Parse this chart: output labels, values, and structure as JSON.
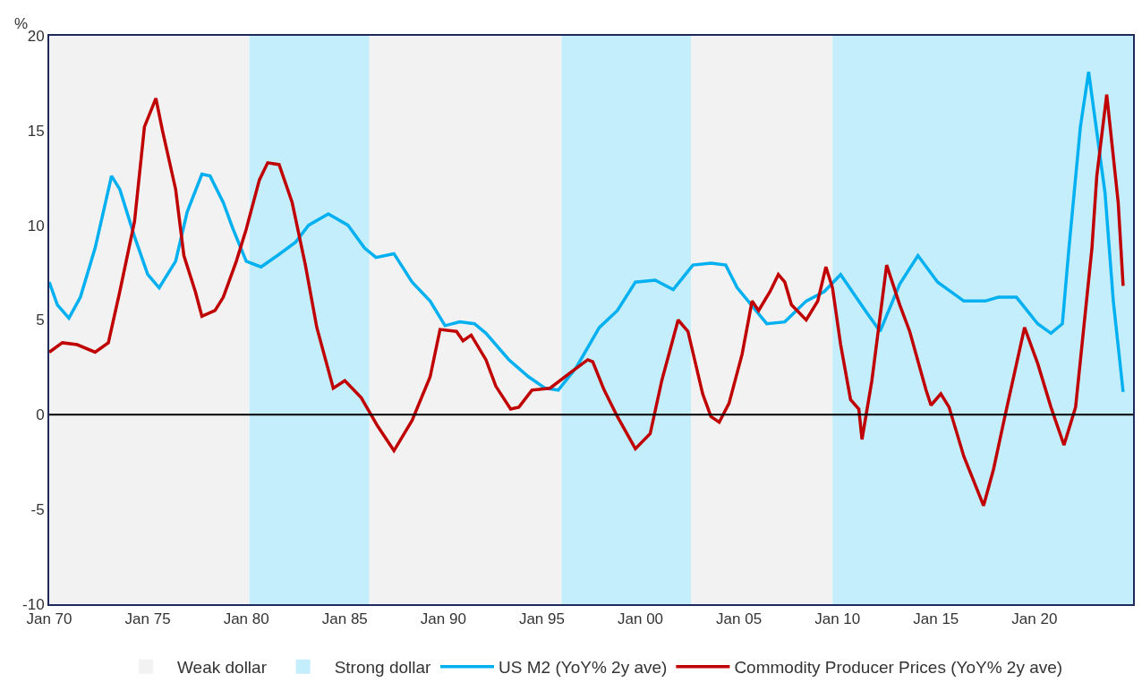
{
  "chart_data": {
    "type": "line",
    "ylabel": "%",
    "xlim": [
      "1970-01",
      "2025-01"
    ],
    "xticks": [
      {
        "value": "1970-01",
        "label": "Jan 70"
      },
      {
        "value": "1975-01",
        "label": "Jan 75"
      },
      {
        "value": "1980-01",
        "label": "Jan 80"
      },
      {
        "value": "1985-01",
        "label": "Jan 85"
      },
      {
        "value": "1990-01",
        "label": "Jan 90"
      },
      {
        "value": "1995-01",
        "label": "Jan 95"
      },
      {
        "value": "2000-01",
        "label": "Jan 00"
      },
      {
        "value": "2005-01",
        "label": "Jan 05"
      },
      {
        "value": "2010-01",
        "label": "Jan 10"
      },
      {
        "value": "2015-01",
        "label": "Jan 15"
      },
      {
        "value": "2020-01",
        "label": "Jan 20"
      }
    ],
    "ylim": [
      -10,
      20
    ],
    "yticks": [
      -10,
      -5,
      0,
      5,
      10,
      15,
      20
    ],
    "grid": false,
    "legend": "bottom",
    "marker": "none",
    "line_style": "solid",
    "ref_lines": [
      {
        "axis": "y",
        "value": 0,
        "color": "#000000"
      }
    ],
    "bands": [
      {
        "axis": "x",
        "from": "1970-01",
        "to": "1980-03",
        "label": "Weak dollar",
        "color": "#f2f2f2"
      },
      {
        "axis": "x",
        "from": "1980-03",
        "to": "1986-04",
        "label": "Strong dollar",
        "color": "#c5eefc"
      },
      {
        "axis": "x",
        "from": "1986-04",
        "to": "1996-01",
        "color": "#f2f2f2"
      },
      {
        "axis": "x",
        "from": "1996-01",
        "to": "2002-08",
        "color": "#c5eefc"
      },
      {
        "axis": "x",
        "from": "2002-08",
        "to": "2009-10",
        "color": "#f2f2f2"
      },
      {
        "axis": "x",
        "from": "2009-10",
        "to": "2025-01",
        "color": "#c5eefc"
      }
    ],
    "series": [
      {
        "name": "US M2 (YoY% 2y ave)",
        "color": "#00b0f0",
        "x": [
          "1970-01",
          "1970-06",
          "1971-01",
          "1971-08",
          "1972-05",
          "1973-03",
          "1973-08",
          "1974-05",
          "1975-01",
          "1975-08",
          "1976-06",
          "1977-01",
          "1977-10",
          "1978-03",
          "1978-11",
          "1979-05",
          "1980-01",
          "1980-10",
          "1981-08",
          "1982-07",
          "1983-03",
          "1984-03",
          "1985-03",
          "1986-01",
          "1986-08",
          "1987-07",
          "1988-06",
          "1989-05",
          "1990-02",
          "1990-11",
          "1991-08",
          "1992-03",
          "1993-05",
          "1994-05",
          "1995-03",
          "1995-11",
          "1996-10",
          "1997-12",
          "1998-11",
          "1999-10",
          "2000-10",
          "2001-09",
          "2002-09",
          "2003-08",
          "2004-05",
          "2004-12",
          "2006-06",
          "2007-05",
          "2008-06",
          "2009-05",
          "2010-03",
          "2011-06",
          "2012-03",
          "2013-03",
          "2014-02",
          "2015-02",
          "2016-06",
          "2017-07",
          "2018-03",
          "2019-02",
          "2020-03",
          "2020-11",
          "2021-06",
          "2021-10",
          "2022-05",
          "2022-10",
          "2023-08",
          "2024-01",
          "2024-07"
        ],
        "values": [
          7.0,
          5.8,
          5.1,
          6.2,
          8.8,
          12.6,
          11.9,
          9.4,
          7.4,
          6.7,
          8.1,
          10.7,
          12.7,
          12.6,
          11.2,
          9.8,
          8.1,
          7.8,
          8.4,
          9.1,
          10.0,
          10.6,
          10.0,
          8.8,
          8.3,
          8.5,
          7.0,
          6.0,
          4.7,
          4.9,
          4.8,
          4.3,
          2.9,
          2.0,
          1.4,
          1.3,
          2.5,
          4.6,
          5.5,
          7.0,
          7.1,
          6.6,
          7.9,
          8.0,
          7.9,
          6.7,
          4.8,
          4.9,
          6.0,
          6.5,
          7.4,
          5.5,
          4.4,
          6.9,
          8.4,
          7.0,
          6.0,
          6.0,
          6.2,
          6.2,
          4.8,
          4.3,
          4.8,
          8.8,
          15.2,
          18.1,
          11.7,
          6.0,
          1.2
        ]
      },
      {
        "name": "Commodity Producer Prices (YoY% 2y ave)",
        "color": "#c00000",
        "x": [
          "1970-01",
          "1970-09",
          "1971-06",
          "1972-05",
          "1973-01",
          "1973-08",
          "1974-05",
          "1974-11",
          "1975-06",
          "1975-10",
          "1976-06",
          "1976-11",
          "1977-06",
          "1977-10",
          "1978-06",
          "1978-11",
          "1979-07",
          "1980-01",
          "1980-09",
          "1981-02",
          "1981-09",
          "1982-05",
          "1983-01",
          "1983-08",
          "1984-06",
          "1985-01",
          "1985-11",
          "1986-09",
          "1987-07",
          "1988-06",
          "1989-05",
          "1989-11",
          "1990-09",
          "1991-01",
          "1991-06",
          "1992-03",
          "1992-09",
          "1993-06",
          "1993-11",
          "1994-07",
          "1995-06",
          "1996-06",
          "1997-05",
          "1997-08",
          "1998-03",
          "1998-11",
          "1999-10",
          "2000-07",
          "2001-02",
          "2001-12",
          "2002-06",
          "2003-03",
          "2003-08",
          "2004-01",
          "2004-07",
          "2005-03",
          "2005-09",
          "2006-01",
          "2006-08",
          "2007-01",
          "2007-05",
          "2007-09",
          "2008-06",
          "2009-01",
          "2009-06",
          "2009-10",
          "2010-03",
          "2010-09",
          "2011-02",
          "2011-04",
          "2011-10",
          "2012-07",
          "2013-03",
          "2013-09",
          "2014-07",
          "2014-10",
          "2015-04",
          "2015-09",
          "2016-06",
          "2017-06",
          "2017-12",
          "2018-07",
          "2019-07",
          "2020-03",
          "2020-11",
          "2021-07",
          "2022-02",
          "2022-12",
          "2023-03",
          "2023-09",
          "2024-04",
          "2024-07"
        ],
        "values": [
          3.3,
          3.8,
          3.7,
          3.3,
          3.8,
          6.5,
          10.2,
          15.2,
          16.7,
          15.0,
          11.9,
          8.4,
          6.5,
          5.2,
          5.5,
          6.2,
          8.1,
          9.8,
          12.4,
          13.3,
          13.2,
          11.2,
          7.9,
          4.6,
          1.4,
          1.8,
          0.9,
          -0.6,
          -1.9,
          -0.3,
          2.0,
          4.5,
          4.4,
          3.9,
          4.2,
          2.9,
          1.5,
          0.3,
          0.4,
          1.3,
          1.4,
          2.2,
          2.9,
          2.8,
          1.3,
          -0.1,
          -1.8,
          -1.0,
          1.8,
          5.0,
          4.4,
          1.1,
          -0.1,
          -0.4,
          0.6,
          3.2,
          6.0,
          5.5,
          6.5,
          7.4,
          7.0,
          5.8,
          5.0,
          6.0,
          7.8,
          6.7,
          3.7,
          0.8,
          0.3,
          -1.3,
          1.8,
          7.9,
          5.8,
          4.4,
          1.3,
          0.5,
          1.1,
          0.4,
          -2.2,
          -4.8,
          -2.9,
          -0.1,
          4.6,
          2.7,
          0.4,
          -1.6,
          0.4,
          8.8,
          12.6,
          16.9,
          11.2,
          6.8
        ]
      }
    ]
  }
}
